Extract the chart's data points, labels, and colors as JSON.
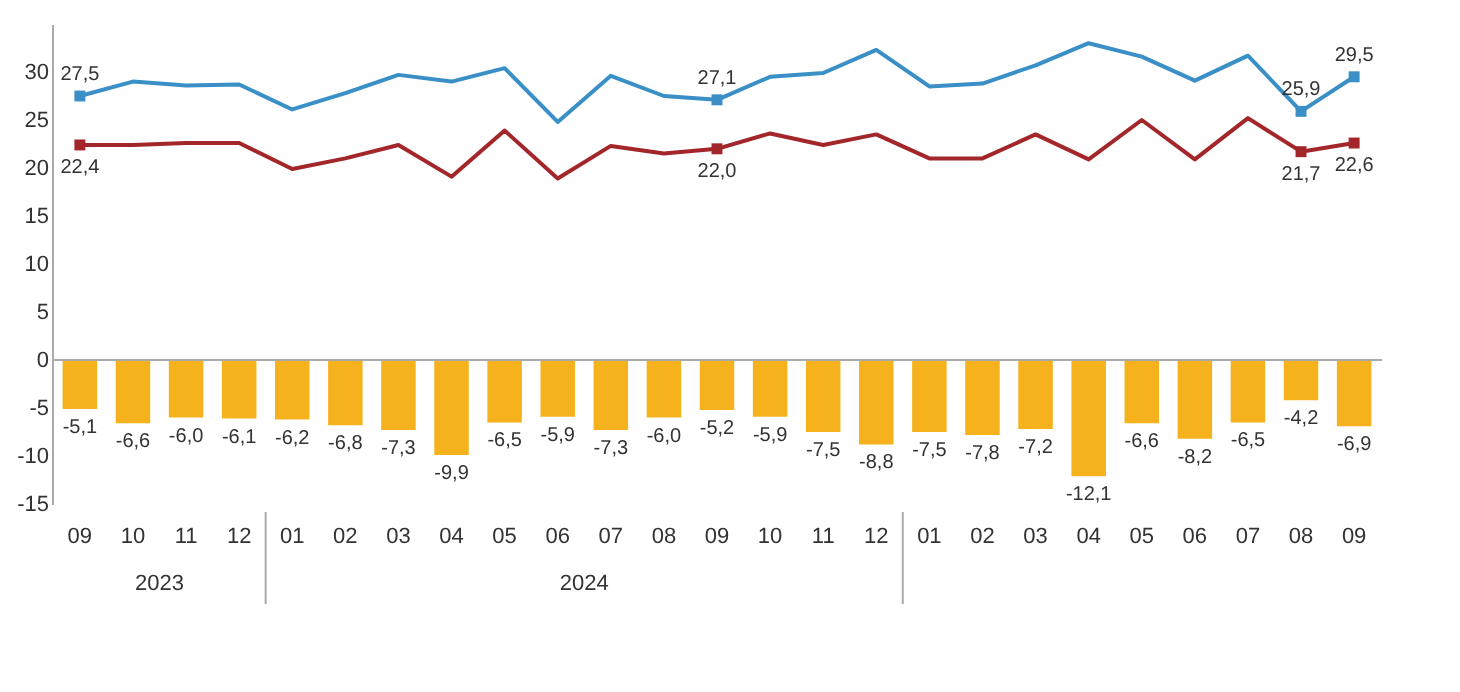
{
  "chart_data": {
    "type": "bar",
    "categories": [
      "09",
      "10",
      "11",
      "12",
      "01",
      "02",
      "03",
      "04",
      "05",
      "06",
      "07",
      "08",
      "09",
      "10",
      "11",
      "12",
      "01",
      "02",
      "03",
      "04",
      "05",
      "06",
      "07",
      "08",
      "09"
    ],
    "ylim": [
      -15,
      35
    ],
    "yticks": [
      -15,
      -10,
      -5,
      0,
      5,
      10,
      15,
      20,
      25,
      30
    ],
    "annotations": [
      "2023",
      "2024"
    ],
    "series": [
      {
        "type": "bar",
        "color": "#f5b21c",
        "values": [
          -5.1,
          -6.6,
          -6.0,
          -6.1,
          -6.2,
          -6.8,
          -7.3,
          -9.9,
          -6.5,
          -5.9,
          -7.3,
          -6.0,
          -5.2,
          -5.9,
          -7.5,
          -8.8,
          -7.5,
          -7.8,
          -7.2,
          -12.1,
          -6.6,
          -8.2,
          -6.5,
          -4.2,
          -6.9
        ],
        "value_labels": [
          "-5,1",
          "-6,6",
          "-6,0",
          "-6,1",
          "-6,2",
          "-6,8",
          "-7,3",
          "-9,9",
          "-6,5",
          "-5,9",
          "-7,3",
          "-6,0",
          "-5,2",
          "-5,9",
          "-7,5",
          "-8,8",
          "-7,5",
          "-7,8",
          "-7,2",
          "-12,1",
          "-6,6",
          "-8,2",
          "-6,5",
          "-4,2",
          "-6,9"
        ]
      },
      {
        "type": "line",
        "color": "#3a8fc7",
        "values": [
          27.5,
          29.0,
          28.6,
          28.7,
          26.1,
          27.8,
          29.7,
          29.0,
          30.4,
          24.8,
          29.6,
          27.5,
          27.1,
          29.5,
          29.9,
          32.3,
          28.5,
          28.8,
          30.7,
          33.0,
          31.6,
          29.1,
          31.7,
          25.9,
          29.5
        ],
        "value_labels": [
          "27,5",
          null,
          null,
          null,
          null,
          null,
          null,
          null,
          null,
          null,
          null,
          null,
          "27,1",
          null,
          null,
          null,
          null,
          null,
          null,
          null,
          null,
          null,
          null,
          "25,9",
          "29,5"
        ]
      },
      {
        "type": "line",
        "color": "#a3262a",
        "values": [
          22.4,
          22.4,
          22.6,
          22.6,
          19.9,
          21.0,
          22.4,
          19.1,
          23.9,
          18.9,
          22.3,
          21.5,
          22.0,
          23.6,
          22.4,
          23.5,
          21.0,
          21.0,
          23.5,
          20.9,
          25.0,
          20.9,
          25.2,
          21.7,
          22.6
        ],
        "value_labels": [
          "22,4",
          null,
          null,
          null,
          null,
          null,
          null,
          null,
          null,
          null,
          null,
          null,
          "22,0",
          null,
          null,
          null,
          null,
          null,
          null,
          null,
          null,
          null,
          null,
          "21,7",
          "22,6"
        ]
      }
    ]
  }
}
